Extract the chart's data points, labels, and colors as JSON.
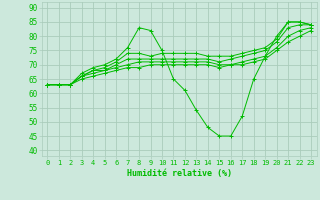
{
  "bg_color": "#cce8dc",
  "grid_color": "#aaccbb",
  "line_color": "#00bb00",
  "marker": "+",
  "xlabel": "Humidité relative (%)",
  "xlim": [
    -0.5,
    23.5
  ],
  "ylim": [
    38,
    92
  ],
  "yticks": [
    40,
    45,
    50,
    55,
    60,
    65,
    70,
    75,
    80,
    85,
    90
  ],
  "xticks": [
    0,
    1,
    2,
    3,
    4,
    5,
    6,
    7,
    8,
    9,
    10,
    11,
    12,
    13,
    14,
    15,
    16,
    17,
    18,
    19,
    20,
    21,
    22,
    23
  ],
  "lines": [
    [
      63,
      63,
      63,
      67,
      69,
      70,
      72,
      76,
      83,
      82,
      75,
      65,
      61,
      54,
      48,
      45,
      45,
      52,
      65,
      73,
      80,
      85,
      85,
      84
    ],
    [
      63,
      63,
      63,
      66,
      68,
      69,
      71,
      74,
      74,
      73,
      74,
      74,
      74,
      74,
      73,
      73,
      73,
      74,
      75,
      76,
      79,
      85,
      85,
      84
    ],
    [
      63,
      63,
      63,
      66,
      68,
      68,
      70,
      72,
      72,
      72,
      72,
      72,
      72,
      72,
      72,
      71,
      72,
      73,
      74,
      75,
      78,
      83,
      84,
      84
    ],
    [
      63,
      63,
      63,
      66,
      67,
      68,
      69,
      70,
      71,
      71,
      71,
      71,
      71,
      71,
      71,
      70,
      70,
      71,
      72,
      73,
      76,
      80,
      82,
      83
    ],
    [
      63,
      63,
      63,
      65,
      66,
      67,
      68,
      69,
      69,
      70,
      70,
      70,
      70,
      70,
      70,
      69,
      70,
      70,
      71,
      72,
      75,
      78,
      80,
      82
    ]
  ]
}
